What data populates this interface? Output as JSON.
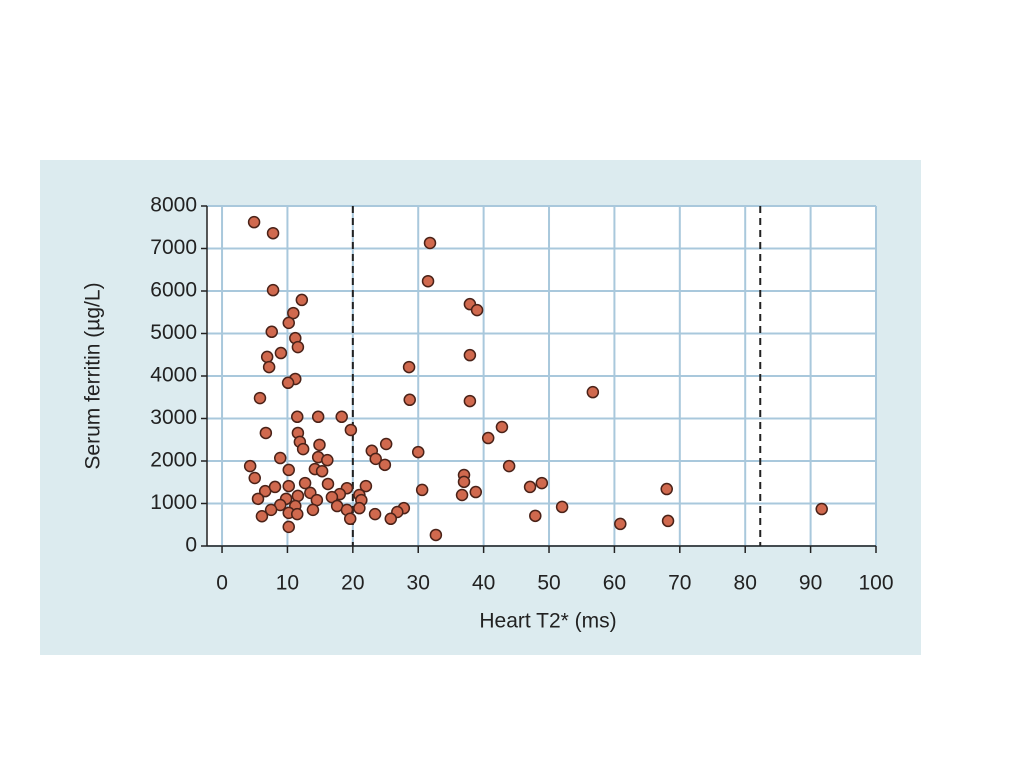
{
  "chart_data": {
    "type": "scatter",
    "x_label": "Heart T2* (ms)",
    "y_label": "Serum ferritin (µg/L)",
    "xlim": [
      -2.3,
      100
    ],
    "xticks": [
      0,
      10,
      20,
      30,
      40,
      50,
      60,
      70,
      80,
      90,
      100
    ],
    "ylim": [
      0,
      8000
    ],
    "yticks": [
      0,
      1000,
      2000,
      3000,
      4000,
      5000,
      6000,
      7000,
      8000
    ],
    "grid": true,
    "reference_lines_x": [
      20,
      82.3
    ],
    "series": [
      {
        "color": "#d0694e",
        "x": [
          4.9,
          7.8,
          7.8,
          31.8,
          31.5,
          12.2,
          10.9,
          37.9,
          39,
          10.2,
          7.6,
          11.2,
          11.6,
          9,
          6.9,
          7.2,
          37.9,
          28.6,
          11.2,
          10.1,
          56.7,
          5.8,
          28.7,
          37.9,
          11.5,
          14.7,
          18.3,
          19.7,
          42.8,
          40.7,
          6.7,
          11.6,
          11.9,
          14.9,
          25.1,
          22.9,
          30,
          12.4,
          14.7,
          23.5,
          24.9,
          16.1,
          4.3,
          8.9,
          43.9,
          10.2,
          14.2,
          15.3,
          37,
          37,
          5,
          12.7,
          16.2,
          22,
          48.9,
          47.1,
          68,
          30.6,
          38.8,
          36.7,
          19.1,
          6.6,
          8.1,
          10.2,
          13.5,
          18,
          21,
          5.5,
          9.8,
          11.6,
          14.5,
          16.8,
          21.3,
          8.9,
          11.2,
          7.5,
          13.9,
          17.6,
          19.1,
          21,
          23.4,
          27.8,
          26.8,
          52,
          91.7,
          10.2,
          6.1,
          11.5,
          19.6,
          25.8,
          47.9,
          68.2,
          60.9,
          10.2,
          32.7
        ],
        "values": [
          7620,
          7360,
          6020,
          7130,
          6230,
          5790,
          5480,
          5690,
          5550,
          5250,
          5040,
          4890,
          4680,
          4540,
          4450,
          4210,
          4490,
          4210,
          3930,
          3840,
          3620,
          3480,
          3440,
          3410,
          3040,
          3040,
          3040,
          2730,
          2800,
          2540,
          2660,
          2660,
          2450,
          2380,
          2400,
          2240,
          2210,
          2280,
          2090,
          2050,
          1910,
          2020,
          1880,
          2070,
          1880,
          1790,
          1810,
          1760,
          1670,
          1510,
          1600,
          1480,
          1460,
          1410,
          1480,
          1390,
          1340,
          1320,
          1270,
          1200,
          1360,
          1290,
          1390,
          1410,
          1250,
          1220,
          1200,
          1110,
          1110,
          1180,
          1080,
          1150,
          1080,
          965,
          940,
          850,
          850,
          940,
          850,
          890,
          750,
          890,
          800,
          920,
          870,
          780,
          700,
          750,
          640,
          640,
          710,
          590,
          520,
          450,
          260
        ]
      }
    ]
  }
}
